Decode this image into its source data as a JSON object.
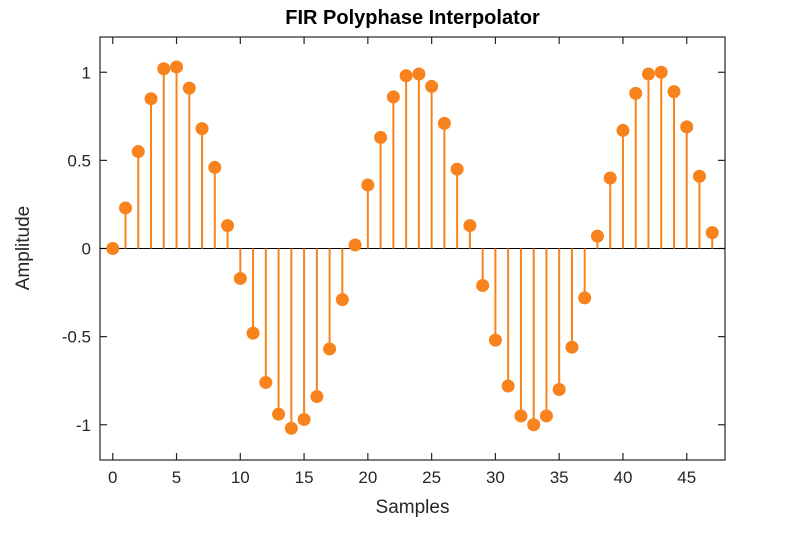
{
  "figure": {
    "background": "#ffffff",
    "axes_color": "#262626",
    "text_color": "#262626"
  },
  "chart_data": {
    "type": "stem",
    "title": "FIR Polyphase Interpolator",
    "xlabel": "Samples",
    "ylabel": "Amplitude",
    "xlim": [
      -1,
      48
    ],
    "ylim": [
      -1.2,
      1.2
    ],
    "xticks": [
      0,
      5,
      10,
      15,
      20,
      25,
      30,
      35,
      40,
      45
    ],
    "yticks": [
      -1,
      -0.5,
      0,
      0.5,
      1
    ],
    "ytick_labels": [
      "-1",
      "-0.5",
      "0",
      "0.5",
      "1"
    ],
    "grid": false,
    "legend": null,
    "color": "#F8821C",
    "baseline": 0,
    "x": [
      0,
      1,
      2,
      3,
      4,
      5,
      6,
      7,
      8,
      9,
      10,
      11,
      12,
      13,
      14,
      15,
      16,
      17,
      18,
      19,
      20,
      21,
      22,
      23,
      24,
      25,
      26,
      27,
      28,
      29,
      30,
      31,
      32,
      33,
      34,
      35,
      36,
      37,
      38,
      39,
      40,
      41,
      42,
      43,
      44,
      45,
      46,
      47
    ],
    "y": [
      0,
      0.23,
      0.55,
      0.85,
      1.02,
      1.03,
      0.91,
      0.68,
      0.46,
      0.13,
      -0.17,
      -0.48,
      -0.76,
      -0.94,
      -1.02,
      -0.97,
      -0.84,
      -0.57,
      -0.29,
      0.02,
      0.36,
      0.63,
      0.86,
      0.98,
      0.99,
      0.92,
      0.71,
      0.45,
      0.13,
      -0.21,
      -0.52,
      -0.78,
      -0.95,
      -1.0,
      -0.95,
      -0.8,
      -0.56,
      -0.28,
      0.07,
      0.4,
      0.67,
      0.88,
      0.99,
      1.0,
      0.89,
      0.69,
      0.41,
      0.09
    ]
  }
}
